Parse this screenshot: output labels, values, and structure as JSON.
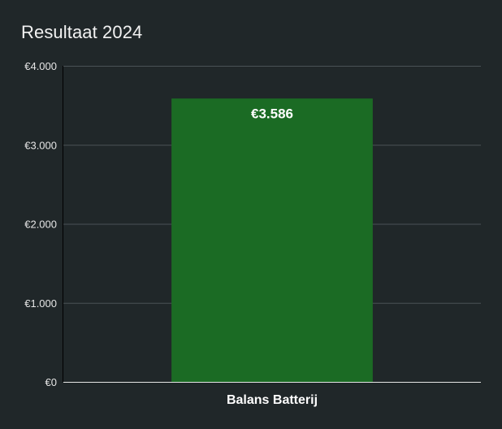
{
  "colors": {
    "background": "#202729",
    "bar": "#1b6b24",
    "gridline": "#4a5256",
    "axis": "#e6e6e6",
    "text": "#f2f2f2"
  },
  "chart_data": {
    "type": "bar",
    "title": "Resultaat 2024",
    "xlabel": "",
    "ylabel": "",
    "categories": [
      "Balans Batterij"
    ],
    "series": [
      {
        "values": [
          3586
        ],
        "data_labels": [
          "€3.586"
        ]
      }
    ],
    "ylim": [
      0,
      4000
    ],
    "yticks": [
      0,
      1000,
      2000,
      3000,
      4000
    ],
    "ytick_labels": [
      "€0",
      "€1.000",
      "€2.000",
      "€3.000",
      "€4.000"
    ],
    "grid": true,
    "legend": "none"
  }
}
